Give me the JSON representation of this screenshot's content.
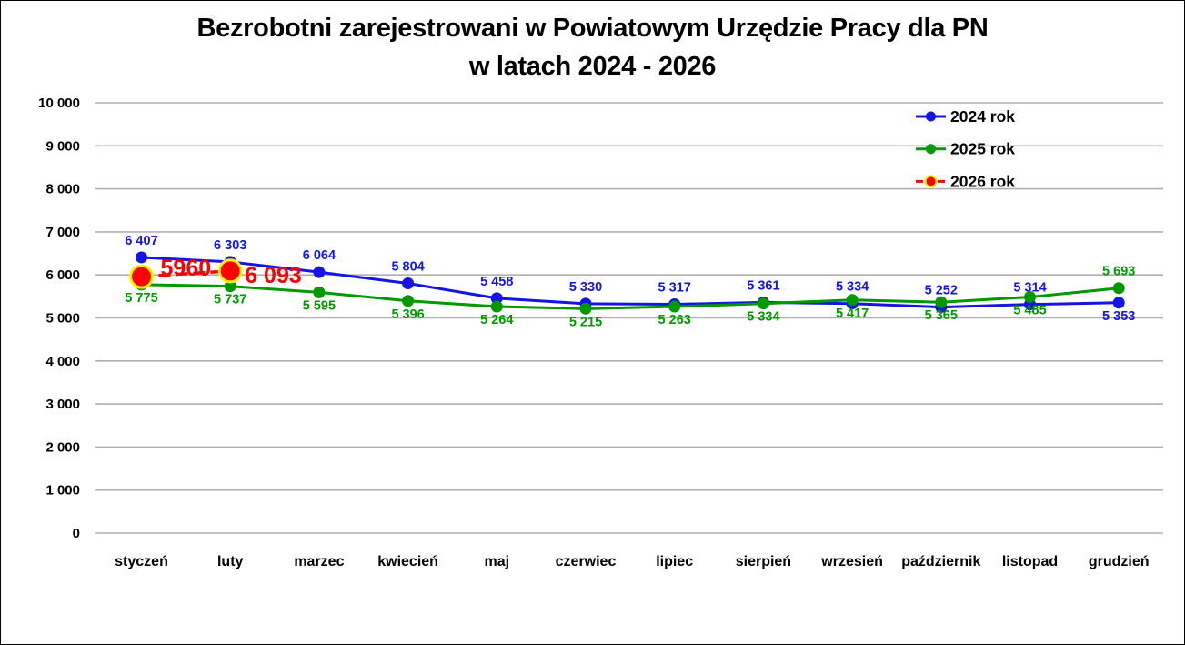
{
  "title": {
    "line1": "Bezrobotni zarejestrowani w Powiatowym Urzędzie Pracy dla PN",
    "line2": "w latach 2024 - 2026"
  },
  "chart_data": {
    "type": "line",
    "title": "Bezrobotni zarejestrowani w Powiatowym Urzędzie Pracy dla PN w latach 2024 - 2026",
    "categories": [
      "styczeń",
      "luty",
      "marzec",
      "kwiecień",
      "maj",
      "czerwiec",
      "lipiec",
      "sierpień",
      "wrzesień",
      "październik",
      "listopad",
      "grudzień"
    ],
    "ylim": [
      0,
      10000
    ],
    "ytick_step": 1000,
    "ytick_labels": [
      "0",
      "1 000",
      "2 000",
      "3 000",
      "4 000",
      "5 000",
      "6 000",
      "7 000",
      "8 000",
      "9 000",
      "10 000"
    ],
    "grid": "horizontal",
    "gridline_color": "#B0B0B0",
    "legend_position": "top-right-inside",
    "series": [
      {
        "name": "2024 rok",
        "color": "#1414E6",
        "marker": "circle",
        "line_style": "solid",
        "values": [
          6407,
          6303,
          6064,
          5804,
          5458,
          5330,
          5317,
          5361,
          5334,
          5252,
          5314,
          5353
        ],
        "labels": [
          "6 407",
          "6 303",
          "6 064",
          "5 804",
          "5 458",
          "5 330",
          "5 317",
          "5 361",
          "5 334",
          "5 252",
          "5 314",
          "5 353"
        ],
        "label_side": [
          "above",
          "above",
          "above",
          "above",
          "above",
          "above",
          "above",
          "above",
          "above",
          "above",
          "above",
          "below"
        ]
      },
      {
        "name": "2025 rok",
        "color": "#009A00",
        "marker": "circle",
        "line_style": "solid",
        "values": [
          5775,
          5737,
          5595,
          5396,
          5264,
          5215,
          5263,
          5334,
          5417,
          5365,
          5485,
          5693
        ],
        "labels": [
          "5 775",
          "5 737",
          "5 595",
          "5 396",
          "5 264",
          "5 215",
          "5 263",
          "5 334",
          "5 417",
          "5 365",
          "5 485",
          "5 693"
        ],
        "label_side": [
          "below",
          "below",
          "below",
          "below",
          "below",
          "below",
          "below",
          "below",
          "below",
          "below",
          "below",
          "above"
        ]
      },
      {
        "name": "2026 rok",
        "color": "#FF0000",
        "marker": "circle-large",
        "marker_ring": "#FFF200",
        "line_style": "dashed",
        "values": [
          5960,
          6093,
          null,
          null,
          null,
          null,
          null,
          null,
          null,
          null,
          null,
          null
        ],
        "labels": [
          "5960",
          "6 093"
        ],
        "label_side": [
          "mid",
          "right"
        ]
      }
    ]
  }
}
